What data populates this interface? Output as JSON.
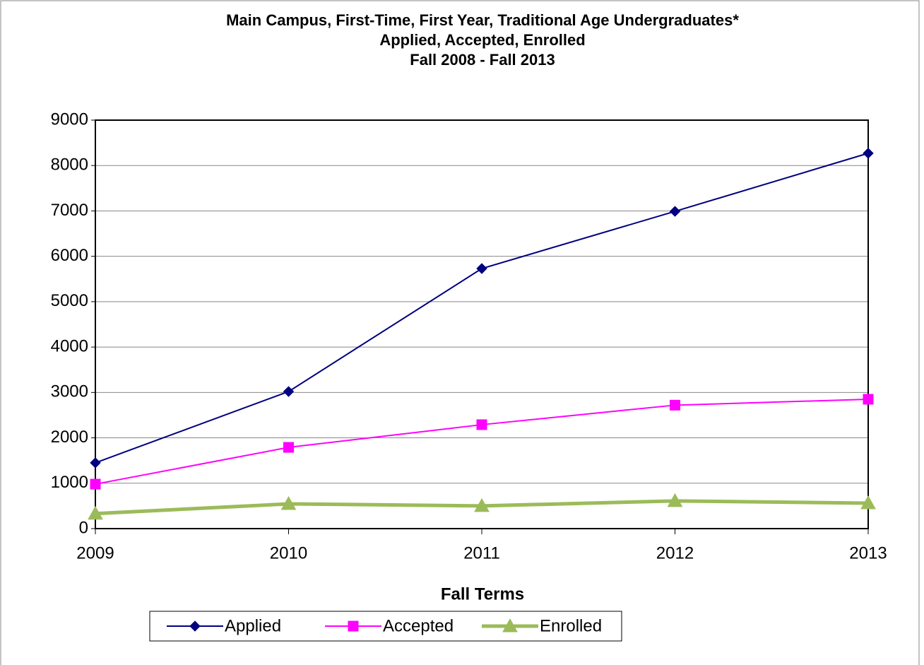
{
  "chart_data": {
    "type": "line",
    "title": [
      "Main Campus, First-Time, First Year, Traditional Age Undergraduates*",
      "Applied, Accepted, Enrolled",
      "Fall 2008 - Fall 2013"
    ],
    "x_label": "Fall Terms",
    "x": [
      2009,
      2010,
      2011,
      2012,
      2013
    ],
    "xlim": [
      2009,
      2013
    ],
    "xticks": [
      2009,
      2010,
      2011,
      2012,
      2013
    ],
    "ylim": [
      0,
      9000
    ],
    "yticks": [
      0,
      1000,
      2000,
      3000,
      4000,
      5000,
      6000,
      7000,
      8000,
      9000
    ],
    "grid": true,
    "legend": "bottom",
    "series": [
      {
        "name": "Applied",
        "color": "#000080",
        "marker": "diamond",
        "line_width": 2,
        "values": [
          1450,
          3020,
          5730,
          6990,
          8270
        ]
      },
      {
        "name": "Accepted",
        "color": "#ff00ff",
        "marker": "square",
        "line_width": 2,
        "values": [
          980,
          1790,
          2290,
          2720,
          2850
        ]
      },
      {
        "name": "Enrolled",
        "color": "#9bbb59",
        "marker": "triangle",
        "line_width": 5,
        "values": [
          330,
          545,
          500,
          610,
          560
        ]
      }
    ]
  }
}
